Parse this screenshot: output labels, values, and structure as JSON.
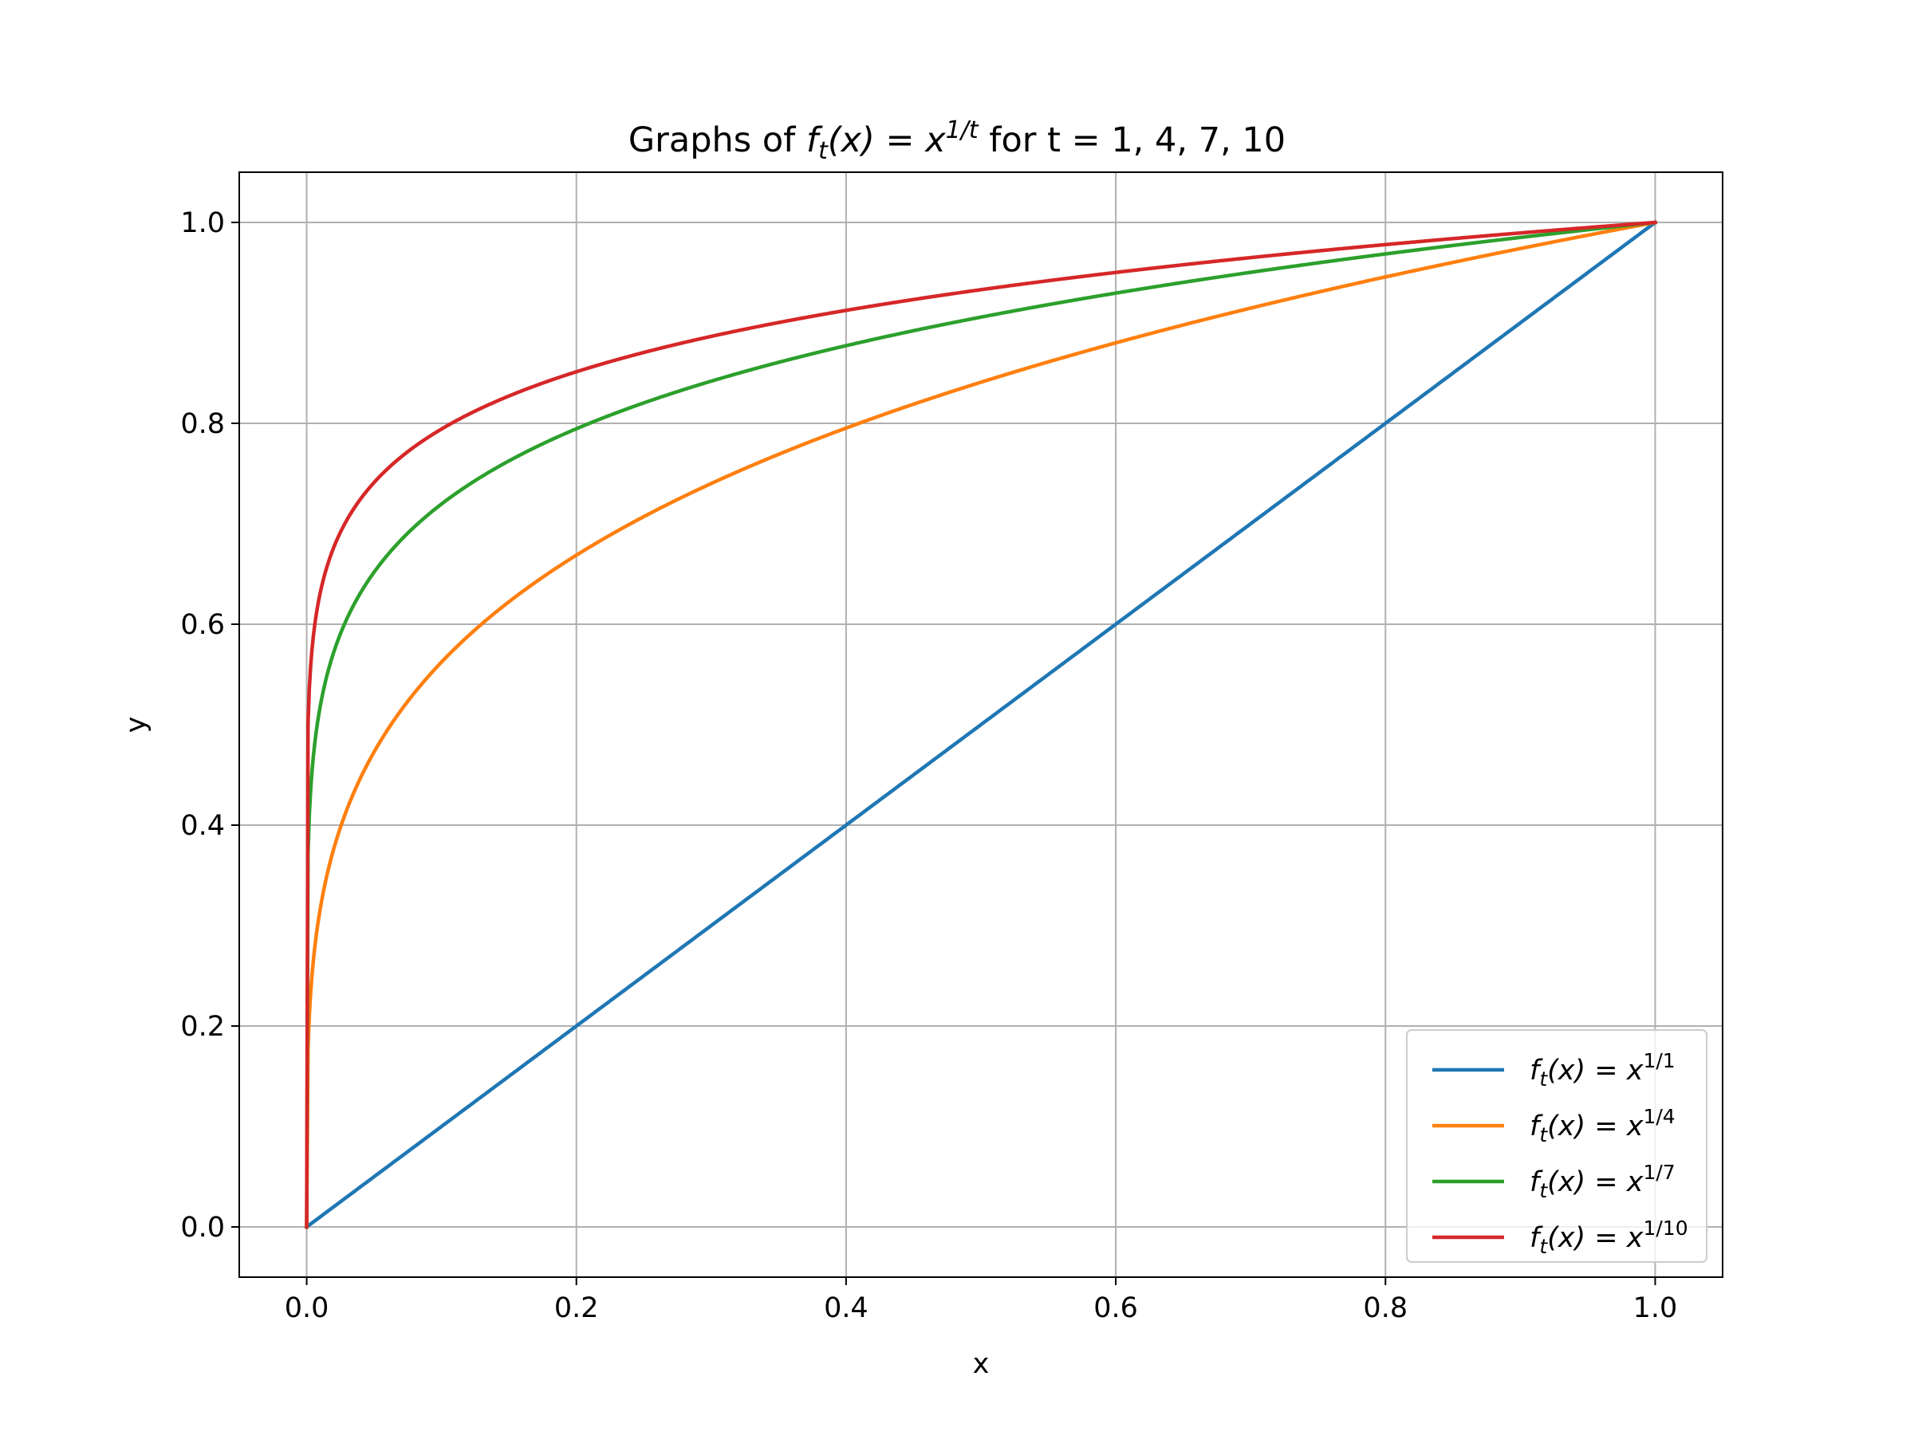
{
  "chart_data": {
    "type": "line",
    "title": {
      "prefix": "Graphs of ",
      "f": "f",
      "sub": "t",
      "mid": "(x) = x",
      "sup": "1/t",
      "suffix": " for t = 1, 4, 7, 10"
    },
    "xlabel": "x",
    "ylabel": "y",
    "xlim": [
      -0.05,
      1.05
    ],
    "ylim": [
      -0.05,
      1.05
    ],
    "xticks": [
      "0.0",
      "0.2",
      "0.4",
      "0.6",
      "0.8",
      "1.0"
    ],
    "yticks": [
      "0.0",
      "0.2",
      "0.4",
      "0.6",
      "0.8",
      "1.0"
    ],
    "grid": true,
    "legend_position": "lower-right",
    "x_domain": [
      0,
      1
    ],
    "series": [
      {
        "t": 1,
        "label": {
          "f": "f",
          "sub": "t",
          "mid": "(x) = x",
          "sup": "1/1"
        },
        "color": "#1f77b4"
      },
      {
        "t": 4,
        "label": {
          "f": "f",
          "sub": "t",
          "mid": "(x) = x",
          "sup": "1/4"
        },
        "color": "#ff7f0e"
      },
      {
        "t": 7,
        "label": {
          "f": "f",
          "sub": "t",
          "mid": "(x) = x",
          "sup": "1/7"
        },
        "color": "#2ca02c"
      },
      {
        "t": 10,
        "label": {
          "f": "f",
          "sub": "t",
          "mid": "(x) = x",
          "sup": "1/10"
        },
        "color": "#d62728"
      }
    ]
  }
}
